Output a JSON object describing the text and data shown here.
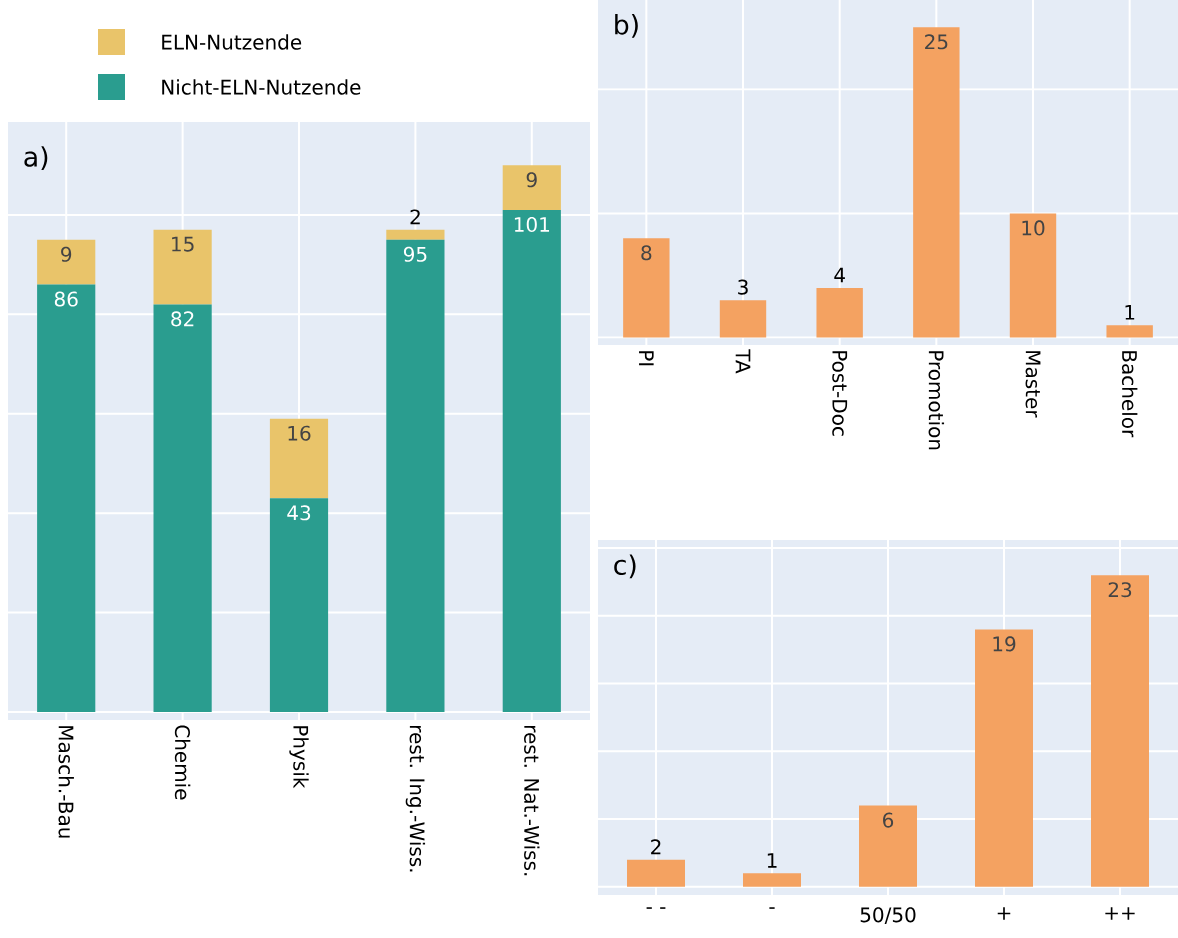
{
  "chart_data": [
    {
      "type": "bar",
      "stacked": true,
      "title": "a)",
      "categories": [
        "Masch.-Bau",
        "Chemie",
        "Physik",
        "rest. Ing.-Wiss.",
        "rest. Nat.-Wiss."
      ],
      "series": [
        {
          "name": "Nicht-ELN-Nutzende",
          "color": "#2a9d8f",
          "values": [
            86,
            82,
            43,
            95,
            101
          ]
        },
        {
          "name": "ELN-Nutzende",
          "color": "#e9c46a",
          "values": [
            9,
            15,
            16,
            2,
            9
          ]
        }
      ],
      "ylim": [
        -1.6,
        118.7
      ],
      "yticks": [
        {
          "value": 0,
          "label": null
        },
        {
          "value": 20,
          "label": null
        },
        {
          "value": 40,
          "label": null
        },
        {
          "value": 60,
          "label": null
        },
        {
          "value": 80,
          "label": null
        },
        {
          "value": 100,
          "label": null
        }
      ],
      "grid": true,
      "legend": "top left",
      "data_labels": true,
      "tick_labels": "x"
    },
    {
      "type": "bar",
      "title": "b)",
      "categories": [
        "PI",
        "TA",
        "Post-Doc",
        "Promotion",
        "Master",
        "Bachelor"
      ],
      "values": [
        8,
        3,
        4,
        25,
        10,
        1
      ],
      "color": "#f4a261",
      "ylim": [
        -0.6,
        27.2
      ],
      "yticks": [
        {
          "value": 0,
          "label": null
        },
        {
          "value": 10,
          "label": null
        },
        {
          "value": 20,
          "label": null
        }
      ],
      "grid": true,
      "data_labels": true,
      "tick_labels": "x"
    },
    {
      "type": "bar",
      "title": "c)",
      "categories": [
        "- -",
        "-",
        "50/50",
        "+",
        "++"
      ],
      "values": [
        2,
        1,
        6,
        19,
        23
      ],
      "color": "#f4a261",
      "ylim": [
        -0.6,
        25.6
      ],
      "yticks": [
        {
          "value": 0,
          "label": null
        },
        {
          "value": 5,
          "label": null
        },
        {
          "value": 10,
          "label": null
        },
        {
          "value": 15,
          "label": null
        },
        {
          "value": 20,
          "label": null
        },
        {
          "value": 25,
          "label": null
        }
      ],
      "grid": true,
      "data_labels": true,
      "tick_labels": "x"
    }
  ]
}
